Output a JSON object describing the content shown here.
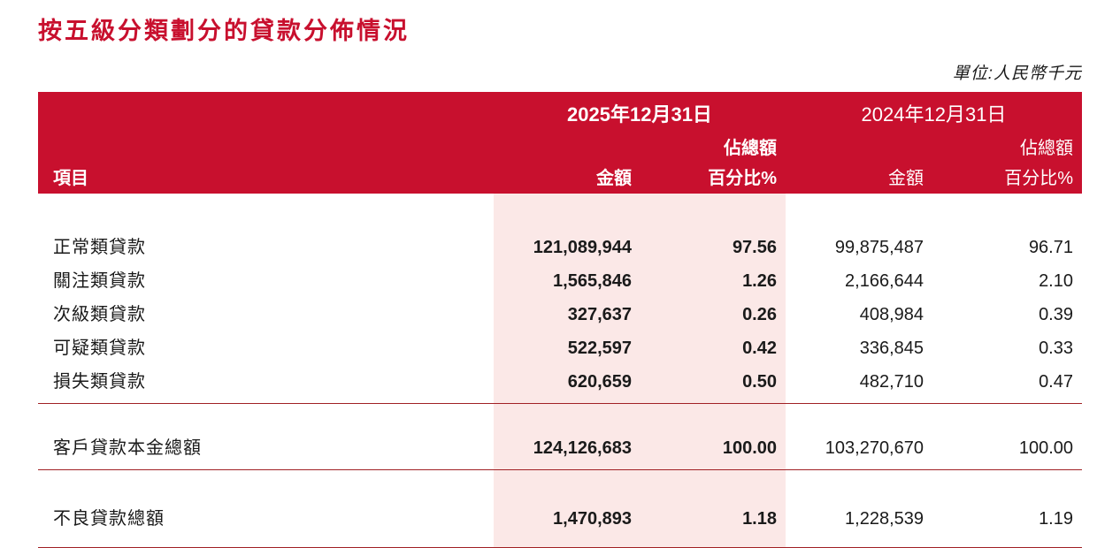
{
  "page": {
    "title": "按五級分類劃分的貸款分佈情況",
    "unit_note": "單位:人民幣千元"
  },
  "colors": {
    "header_red": "#C8102E",
    "title_red": "#C8102E",
    "highlight_pink": "#FBE8E7",
    "separator_red": "#A12024"
  },
  "table": {
    "header": {
      "group_2025": "2025年12月31日",
      "group_2024": "2024年12月31日",
      "item_label": "項目",
      "amount_label": "金額",
      "pct_top_label": "佔總額",
      "pct_bottom_label": "百分比%"
    },
    "rows": [
      {
        "label": "正常類貸款",
        "a2025": "121,089,944",
        "p2025": "97.56",
        "a2024": "99,875,487",
        "p2024": "96.71"
      },
      {
        "label": "關注類貸款",
        "a2025": "1,565,846",
        "p2025": "1.26",
        "a2024": "2,166,644",
        "p2024": "2.10"
      },
      {
        "label": "次級類貸款",
        "a2025": "327,637",
        "p2025": "0.26",
        "a2024": "408,984",
        "p2024": "0.39"
      },
      {
        "label": "可疑類貸款",
        "a2025": "522,597",
        "p2025": "0.42",
        "a2024": "336,845",
        "p2024": "0.33"
      },
      {
        "label": "損失類貸款",
        "a2025": "620,659",
        "p2025": "0.50",
        "a2024": "482,710",
        "p2024": "0.47"
      }
    ],
    "total_row": {
      "label": "客戶貸款本金總額",
      "a2025": "124,126,683",
      "p2025": "100.00",
      "a2024": "103,270,670",
      "p2024": "100.00"
    },
    "npl_row": {
      "label": "不良貸款總額",
      "a2025": "1,470,893",
      "p2025": "1.18",
      "a2024": "1,228,539",
      "p2024": "1.19"
    }
  }
}
